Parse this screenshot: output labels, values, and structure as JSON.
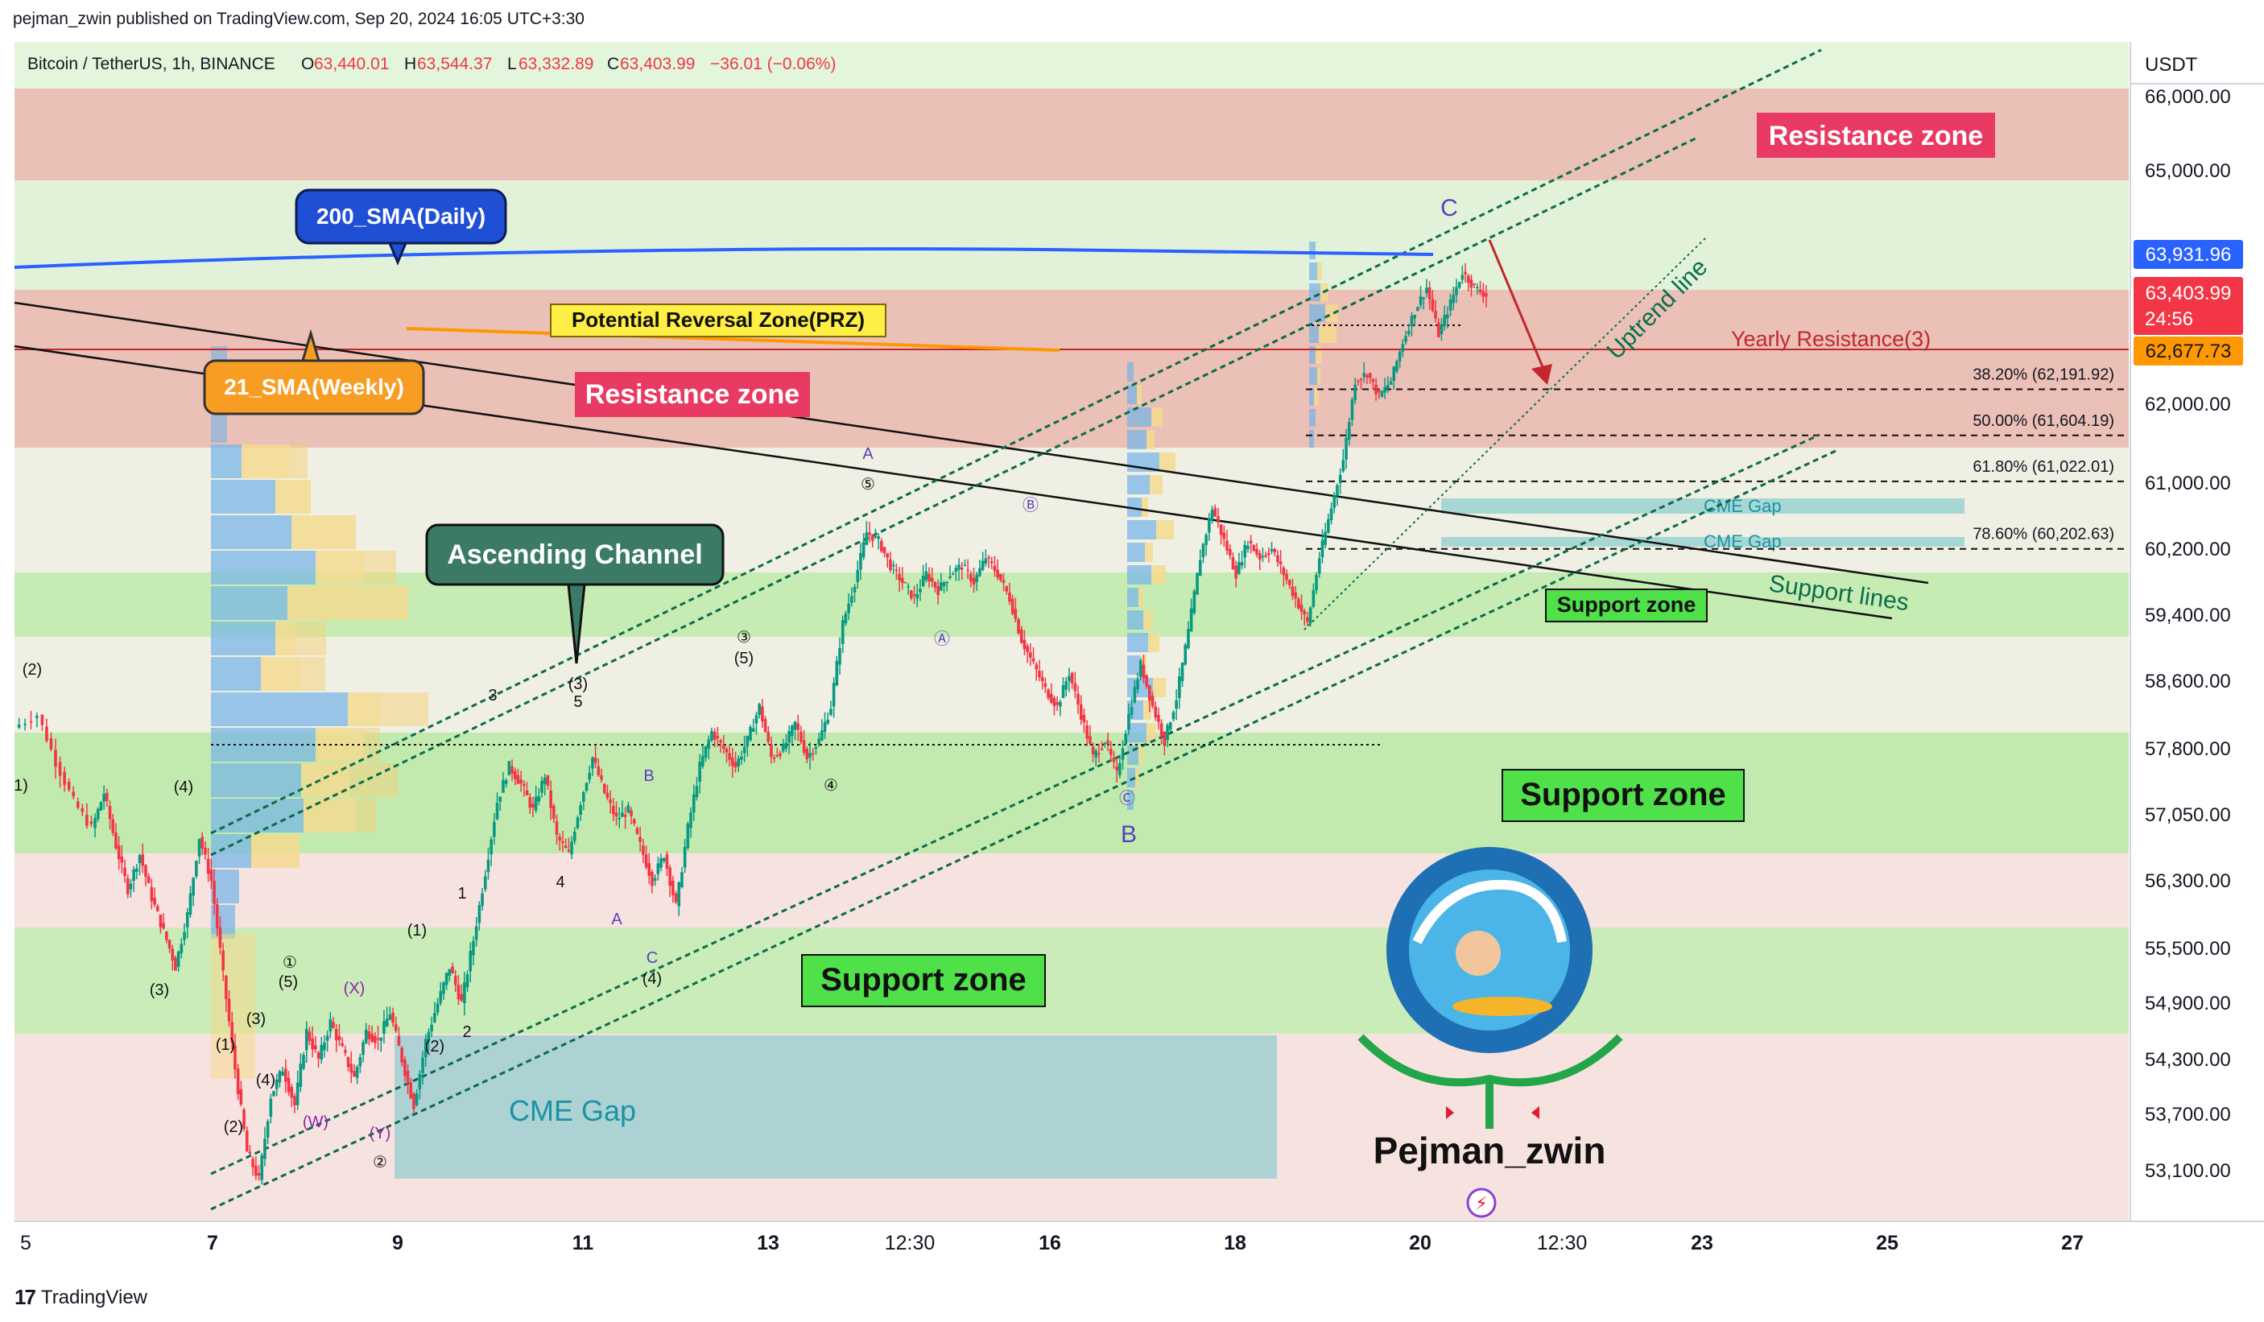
{
  "header": {
    "publisher_line": "pejman_zwin published on TradingView.com, Sep 20, 2024 16:05 UTC+3:30"
  },
  "footer": {
    "brand": "TradingView"
  },
  "chart_data": {
    "type": "candlestick",
    "symbol_line": {
      "name": "Bitcoin / TetherUS, 1h, BINANCE",
      "open_label": "O",
      "open": "63,440.01",
      "high_label": "H",
      "high": "63,544.37",
      "low_label": "L",
      "low": "63,332.89",
      "close_label": "C",
      "close": "63,403.99",
      "change": "−36.01 (−0.06%)"
    },
    "currency": "USDT",
    "y_ticks": [
      "66,000.00",
      "65,000.00",
      "62,000.00",
      "61,000.00",
      "60,200.00",
      "59,400.00",
      "58,600.00",
      "57,800.00",
      "57,050.00",
      "56,300.00",
      "55,500.00",
      "54,900.00",
      "54,300.00",
      "53,700.00",
      "53,100.00"
    ],
    "y_tick_values": [
      66000,
      65000,
      62000,
      61000,
      60200,
      59400,
      58600,
      57800,
      57050,
      56300,
      55500,
      54900,
      54300,
      53700,
      53100
    ],
    "x_ticks": [
      {
        "label": "5",
        "bold": false
      },
      {
        "label": "7",
        "bold": true
      },
      {
        "label": "9",
        "bold": true
      },
      {
        "label": "11",
        "bold": true
      },
      {
        "label": "13",
        "bold": true
      },
      {
        "label": "12:30",
        "bold": false
      },
      {
        "label": "16",
        "bold": true
      },
      {
        "label": "18",
        "bold": true
      },
      {
        "label": "20",
        "bold": true
      },
      {
        "label": "12:30",
        "bold": false
      },
      {
        "label": "23",
        "bold": true
      },
      {
        "label": "25",
        "bold": true
      },
      {
        "label": "27",
        "bold": true
      }
    ],
    "price_tags": {
      "sma200": {
        "value": "63,931.96",
        "color": "#2962ff"
      },
      "last": {
        "value": "63,403.99",
        "countdown": "24:56",
        "color": "#f23645"
      },
      "yearly": {
        "value": "62,677.73",
        "color": "#ff9800"
      }
    },
    "fib_levels": [
      {
        "label": "38.20% (62,191.92)",
        "price": 62191.92
      },
      {
        "label": "50.00% (61,604.19)",
        "price": 61604.19
      },
      {
        "label": "61.80% (61,022.01)",
        "price": 61022.01
      },
      {
        "label": "78.60% (60,202.63)",
        "price": 60202.63
      }
    ],
    "annotations": {
      "resistance_zone_top": "Resistance zone",
      "resistance_zone_mid": "Resistance zone",
      "support_zone_big": "Support zone",
      "support_zone_low": "Support zone",
      "support_zone_small": "Support zone",
      "sma200": "200_SMA(Daily)",
      "sma21": "21_SMA(Weekly)",
      "prz": "Potential Reversal Zone(PRZ)",
      "ascending_channel": "Ascending Channel",
      "yearly_resistance": "Yearly Resistance(3)",
      "uptrend_line": "Uptrend line",
      "support_lines": "Support lines",
      "cme_gap_big": "CME Gap",
      "cme_gap_1": "CME Gap",
      "cme_gap_2": "CME Gap",
      "wave_c": "C",
      "wave_b": "B",
      "brand_name": "Pejman_zwin"
    },
    "wave_labels": [
      "(2)",
      "1)",
      "(4)",
      "(3)",
      "(1)",
      "(2)",
      "(3)",
      "(4)",
      "(5)",
      "①",
      "(X)",
      "(W)",
      "(Y)",
      "②",
      "(1)",
      "(2)",
      "1",
      "2",
      "3",
      "4",
      "5",
      "(3)",
      "(4)",
      "③",
      "(5)",
      "④",
      "⑤",
      "A",
      "B",
      "C",
      "A",
      "Ⓐ",
      "Ⓑ",
      "Ⓒ"
    ],
    "series_price_path_points": [
      [
        0,
        58050
      ],
      [
        8,
        58200
      ],
      [
        14,
        57650
      ],
      [
        20,
        57200
      ],
      [
        26,
        56900
      ],
      [
        30,
        57300
      ],
      [
        34,
        56700
      ],
      [
        38,
        56200
      ],
      [
        42,
        56600
      ],
      [
        46,
        56100
      ],
      [
        50,
        55700
      ],
      [
        54,
        55300
      ],
      [
        58,
        55900
      ],
      [
        62,
        56800
      ],
      [
        66,
        56300
      ],
      [
        70,
        55200
      ],
      [
        74,
        54200
      ],
      [
        78,
        53300
      ],
      [
        82,
        53000
      ],
      [
        86,
        53900
      ],
      [
        90,
        54200
      ],
      [
        94,
        53800
      ],
      [
        98,
        54600
      ],
      [
        102,
        54300
      ],
      [
        106,
        54700
      ],
      [
        110,
        54400
      ],
      [
        114,
        54100
      ],
      [
        118,
        54600
      ],
      [
        122,
        54500
      ],
      [
        126,
        54800
      ],
      [
        130,
        54300
      ],
      [
        134,
        53800
      ],
      [
        138,
        54500
      ],
      [
        142,
        54900
      ],
      [
        146,
        55300
      ],
      [
        150,
        54900
      ],
      [
        154,
        55600
      ],
      [
        158,
        56400
      ],
      [
        162,
        57200
      ],
      [
        166,
        57600
      ],
      [
        170,
        57400
      ],
      [
        174,
        57100
      ],
      [
        178,
        57500
      ],
      [
        182,
        56800
      ],
      [
        186,
        56600
      ],
      [
        190,
        57200
      ],
      [
        194,
        57700
      ],
      [
        198,
        57300
      ],
      [
        202,
        57000
      ],
      [
        206,
        57100
      ],
      [
        210,
        56700
      ],
      [
        214,
        56300
      ],
      [
        218,
        56600
      ],
      [
        222,
        56000
      ],
      [
        226,
        56900
      ],
      [
        230,
        57600
      ],
      [
        234,
        58000
      ],
      [
        238,
        57800
      ],
      [
        242,
        57600
      ],
      [
        246,
        57900
      ],
      [
        250,
        58300
      ],
      [
        254,
        57700
      ],
      [
        258,
        57800
      ],
      [
        262,
        58100
      ],
      [
        266,
        57700
      ],
      [
        270,
        57900
      ],
      [
        274,
        58300
      ],
      [
        278,
        59300
      ],
      [
        282,
        59800
      ],
      [
        286,
        60400
      ],
      [
        290,
        60300
      ],
      [
        294,
        60000
      ],
      [
        298,
        59800
      ],
      [
        302,
        59600
      ],
      [
        306,
        59900
      ],
      [
        310,
        59700
      ],
      [
        314,
        59900
      ],
      [
        318,
        60000
      ],
      [
        322,
        59800
      ],
      [
        326,
        60100
      ],
      [
        330,
        59900
      ],
      [
        334,
        59600
      ],
      [
        338,
        59100
      ],
      [
        342,
        58800
      ],
      [
        346,
        58500
      ],
      [
        350,
        58300
      ],
      [
        354,
        58700
      ],
      [
        358,
        58200
      ],
      [
        362,
        57700
      ],
      [
        366,
        57900
      ],
      [
        370,
        57500
      ],
      [
        374,
        58200
      ],
      [
        378,
        58800
      ],
      [
        382,
        58300
      ],
      [
        386,
        57900
      ],
      [
        390,
        58400
      ],
      [
        394,
        59200
      ],
      [
        398,
        60100
      ],
      [
        402,
        60700
      ],
      [
        406,
        60300
      ],
      [
        410,
        59900
      ],
      [
        414,
        60300
      ],
      [
        418,
        60100
      ],
      [
        422,
        60200
      ],
      [
        426,
        59900
      ],
      [
        430,
        59600
      ],
      [
        434,
        59300
      ],
      [
        438,
        60100
      ],
      [
        442,
        60700
      ],
      [
        446,
        61300
      ],
      [
        450,
        62300
      ],
      [
        454,
        62400
      ],
      [
        458,
        62100
      ],
      [
        462,
        62300
      ],
      [
        466,
        62800
      ],
      [
        470,
        63200
      ],
      [
        474,
        63500
      ],
      [
        478,
        62900
      ],
      [
        482,
        63300
      ],
      [
        486,
        63700
      ],
      [
        490,
        63500
      ],
      [
        494,
        63400
      ]
    ]
  }
}
